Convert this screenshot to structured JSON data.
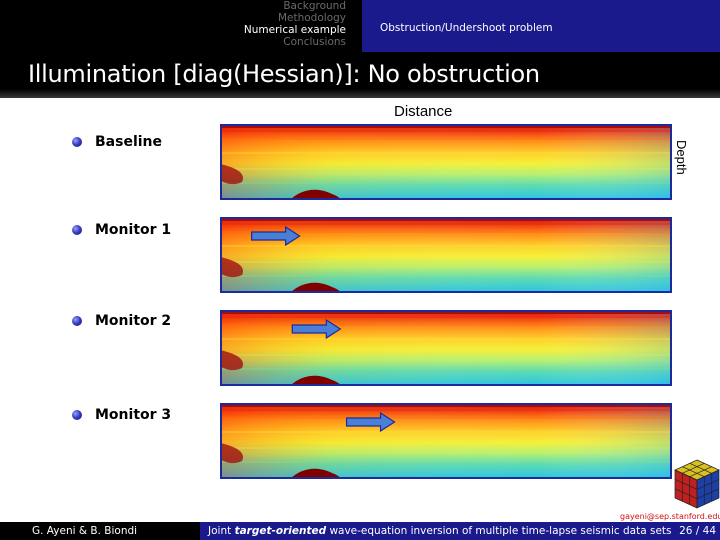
{
  "nav": {
    "sections": [
      "Background",
      "Methodology",
      "Numerical example",
      "Conclusions"
    ],
    "active_index": 2,
    "subsection": "Obstruction/Undershoot problem"
  },
  "frame_title": "Illumination [diag(Hessian)]: No obstruction",
  "figure": {
    "x_axis_label": "Distance",
    "y_axis_label": "Depth",
    "colormap": "jet",
    "panels": [
      {
        "label": "Baseline",
        "arrow_position": null
      },
      {
        "label": "Monitor 1",
        "arrow_position": 0.07
      },
      {
        "label": "Monitor 2",
        "arrow_position": 0.16
      },
      {
        "label": "Monitor 3",
        "arrow_position": 0.28
      }
    ]
  },
  "contact_email": "gayeni@sep.stanford.edu",
  "footer": {
    "authors": "G. Ayeni & B. Biondi",
    "talk_title_pre": "Joint ",
    "talk_title_emph": "target-oriented",
    "talk_title_post": " wave-equation inversion of multiple time-lapse seismic data sets",
    "page": "26 / 44"
  },
  "colors": {
    "nav_background": "#000000",
    "nav_right_background": "#1a1a8c",
    "frame_title_background": "#000000",
    "footer_left": "#000000",
    "footer_right": "#1a1a8c",
    "panel_border": "#1d2a9c",
    "arrow_fill": "#4a7fd6",
    "email_text": "#d21111"
  }
}
